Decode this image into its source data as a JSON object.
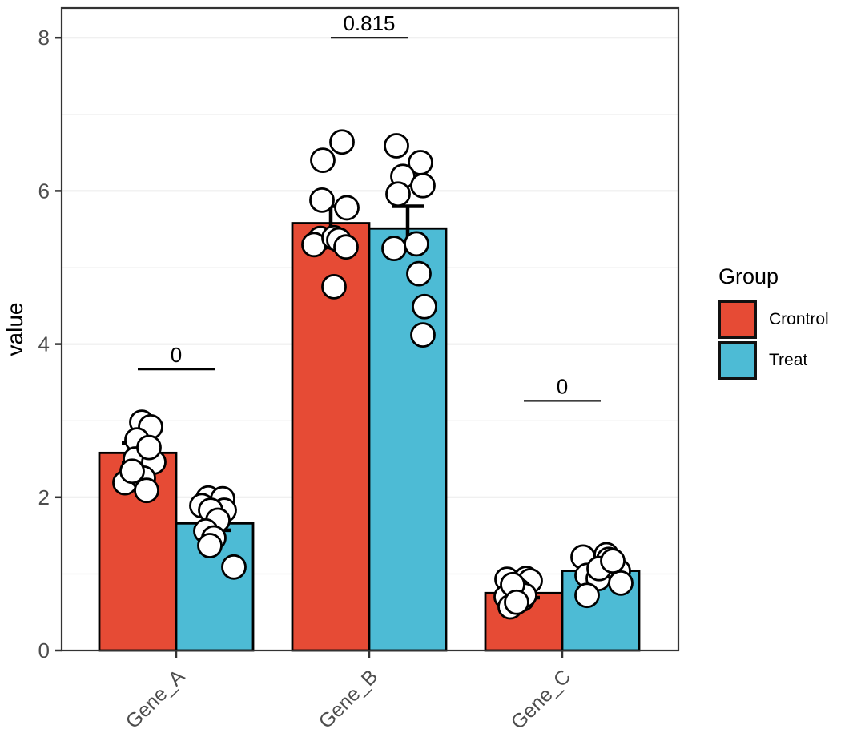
{
  "chart_data": {
    "type": "bar",
    "title": "",
    "xlabel": "",
    "ylabel": "value",
    "categories": [
      "Gene_A",
      "Gene_B",
      "Gene_C"
    ],
    "ylim": [
      0,
      8
    ],
    "yticks": [
      0,
      2,
      4,
      6,
      8
    ],
    "grid": "major+minor horizontal",
    "legend": {
      "title": "Group",
      "position": "right",
      "items": [
        {
          "label": "Crontrol",
          "color": "#E64B35"
        },
        {
          "label": "Treat",
          "color": "#4DBBD5"
        }
      ]
    },
    "series": [
      {
        "name": "Crontrol",
        "color": "#E64B35",
        "means": [
          2.58,
          5.58,
          0.75
        ],
        "sem": [
          0.13,
          0.22,
          0.06
        ],
        "points": [
          [
            [
              5,
              2.98
            ],
            [
              16,
              2.92
            ],
            [
              -1,
              2.75
            ],
            [
              -3,
              2.5
            ],
            [
              20,
              2.46
            ],
            [
              -16,
              2.19
            ],
            [
              7,
              2.25
            ],
            [
              11,
              2.09
            ],
            [
              14,
              2.65
            ],
            [
              -7,
              2.34
            ]
          ],
          [
            [
              14,
              6.64
            ],
            [
              -10,
              6.4
            ],
            [
              -11,
              5.88
            ],
            [
              20,
              5.78
            ],
            [
              -13,
              5.38
            ],
            [
              -21,
              5.3
            ],
            [
              4,
              5.39
            ],
            [
              10,
              5.36
            ],
            [
              19,
              5.27
            ],
            [
              4,
              4.75
            ]
          ],
          [
            [
              -21,
              0.93
            ],
            [
              3,
              0.94
            ],
            [
              8,
              0.91
            ],
            [
              -6,
              0.78
            ],
            [
              -22,
              0.7
            ],
            [
              -2,
              0.67
            ],
            [
              -17,
              0.57
            ],
            [
              1,
              0.72
            ],
            [
              -14,
              0.86
            ],
            [
              -9,
              0.63
            ]
          ]
        ]
      },
      {
        "name": "Treat",
        "color": "#4DBBD5",
        "means": [
          1.66,
          5.51,
          1.04
        ],
        "sem": [
          0.09,
          0.29,
          0.07
        ],
        "points": [
          [
            [
              -8,
              1.99
            ],
            [
              -16,
              1.89
            ],
            [
              10,
              1.98
            ],
            [
              12,
              1.83
            ],
            [
              -5,
              1.83
            ],
            [
              4,
              1.7
            ],
            [
              -11,
              1.56
            ],
            [
              -1,
              1.47
            ],
            [
              -6,
              1.37
            ],
            [
              24,
              1.09
            ]
          ],
          [
            [
              -14,
              6.59
            ],
            [
              16,
              6.37
            ],
            [
              -6,
              6.19
            ],
            [
              19,
              6.07
            ],
            [
              -12,
              5.96
            ],
            [
              -17,
              5.25
            ],
            [
              11,
              5.31
            ],
            [
              14,
              4.92
            ],
            [
              21,
              4.49
            ],
            [
              19,
              4.12
            ]
          ],
          [
            [
              -22,
              1.22
            ],
            [
              7,
              1.25
            ],
            [
              10,
              1.19
            ],
            [
              -17,
              0.98
            ],
            [
              -3,
              0.94
            ],
            [
              22,
              1.04
            ],
            [
              25,
              0.88
            ],
            [
              -17,
              0.72
            ],
            [
              -2,
              1.07
            ],
            [
              15,
              1.17
            ]
          ]
        ]
      }
    ],
    "annotations": [
      {
        "category": "Gene_A",
        "label": "0",
        "y": 3.67
      },
      {
        "category": "Gene_B",
        "label": "0.815",
        "y": 8.0
      },
      {
        "category": "Gene_C",
        "label": "0",
        "y": 3.26
      }
    ],
    "point_style": {
      "fill": "#FFFFFF",
      "stroke": "#000000"
    },
    "axis_text_color": "#4D4D4D"
  }
}
